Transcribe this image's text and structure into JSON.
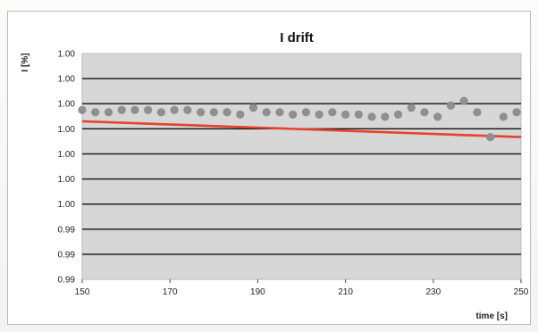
{
  "chart_data": {
    "type": "scatter",
    "title": "I drift",
    "ylabel": "I [%]",
    "xlabel": "time [s]",
    "xlim": [
      150,
      250
    ],
    "x_ticks": [
      "150",
      "170",
      "190",
      "210",
      "230",
      "250"
    ],
    "y_ticks": [
      "1.00",
      "1.00",
      "1.00",
      "1.00",
      "1.00",
      "1.00",
      "1.00",
      "0.99",
      "0.99",
      "0.99"
    ],
    "grid": true,
    "series": [
      {
        "type": "scatter",
        "color": "#8f8f8f",
        "points": [
          [
            150,
            0.75
          ],
          [
            153,
            0.74
          ],
          [
            156,
            0.74
          ],
          [
            159,
            0.75
          ],
          [
            162,
            0.75
          ],
          [
            165,
            0.75
          ],
          [
            168,
            0.74
          ],
          [
            171,
            0.75
          ],
          [
            174,
            0.75
          ],
          [
            177,
            0.74
          ],
          [
            180,
            0.74
          ],
          [
            183,
            0.74
          ],
          [
            186,
            0.73
          ],
          [
            189,
            0.76
          ],
          [
            192,
            0.74
          ],
          [
            195,
            0.74
          ],
          [
            198,
            0.73
          ],
          [
            201,
            0.74
          ],
          [
            204,
            0.73
          ],
          [
            207,
            0.74
          ],
          [
            210,
            0.73
          ],
          [
            213,
            0.73
          ],
          [
            216,
            0.72
          ],
          [
            219,
            0.72
          ],
          [
            222,
            0.73
          ],
          [
            225,
            0.76
          ],
          [
            228,
            0.74
          ],
          [
            231,
            0.72
          ],
          [
            234,
            0.77
          ],
          [
            237,
            0.79
          ],
          [
            240,
            0.74
          ],
          [
            243,
            0.63
          ],
          [
            246,
            0.72
          ],
          [
            249,
            0.74
          ]
        ]
      },
      {
        "type": "line",
        "color": "#e8422c",
        "points": [
          [
            150,
            0.7
          ],
          [
            250,
            0.63
          ]
        ]
      }
    ],
    "colors": {
      "plot_background": "#d7d7d7",
      "gridline": "#111111"
    }
  }
}
